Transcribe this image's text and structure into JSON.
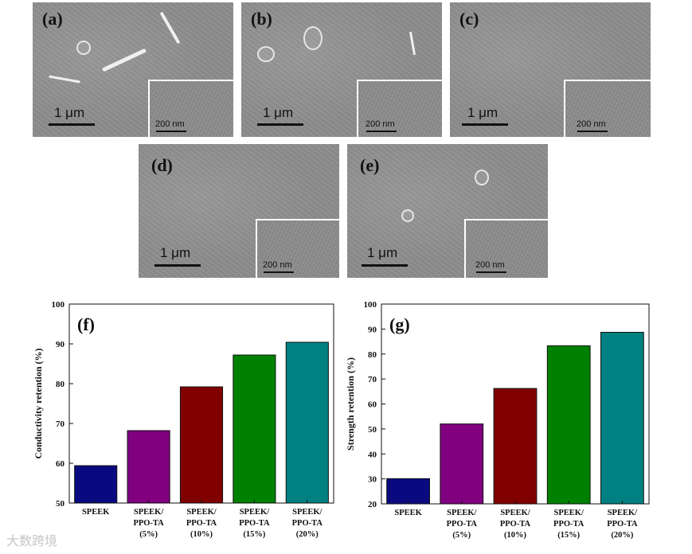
{
  "sem_panels": [
    {
      "label": "(a)",
      "scale": "1 μm",
      "inset_scale": "200 nm"
    },
    {
      "label": "(b)",
      "scale": "1 μm",
      "inset_scale": "200 nm"
    },
    {
      "label": "(c)",
      "scale": "1 μm",
      "inset_scale": "200 nm"
    },
    {
      "label": "(d)",
      "scale": "1 μm",
      "inset_scale": "200 nm"
    },
    {
      "label": "(e)",
      "scale": "1 μm",
      "inset_scale": "200 nm"
    }
  ],
  "watermark": "大数跨境",
  "colors": [
    "#0a0a80",
    "#800080",
    "#800000",
    "#008000",
    "#008080"
  ],
  "chart_data": [
    {
      "type": "bar",
      "panel_label": "(f)",
      "categories": [
        [
          "SPEEK"
        ],
        [
          "SPEEK/",
          "PPO-TA",
          "(5%)"
        ],
        [
          "SPEEK/",
          "PPO-TA",
          "(10%)"
        ],
        [
          "SPEEK/",
          "PPO-TA",
          "(15%)"
        ],
        [
          "SPEEK/",
          "PPO-TA",
          "(20%)"
        ]
      ],
      "values": [
        59.4,
        68.2,
        79.2,
        87.2,
        90.4
      ],
      "ylabel": "Conductivity retention (%)",
      "ylim": [
        50,
        100
      ],
      "yticks": [
        "50",
        "60",
        "70",
        "80",
        "90",
        "100"
      ]
    },
    {
      "type": "bar",
      "panel_label": "(g)",
      "categories": [
        [
          "SPEEK"
        ],
        [
          "SPEEK/",
          "PPO-TA",
          "(5%)"
        ],
        [
          "SPEEK/",
          "PPO-TA",
          "(10%)"
        ],
        [
          "SPEEK/",
          "PPO-TA",
          "(15%)"
        ],
        [
          "SPEEK/",
          "PPO-TA",
          "(20%)"
        ]
      ],
      "values": [
        30.1,
        52.0,
        66.2,
        83.3,
        88.7
      ],
      "ylabel": "Strength retention (%)",
      "ylim": [
        20,
        100
      ],
      "yticks": [
        "20",
        "30",
        "40",
        "50",
        "60",
        "70",
        "80",
        "90",
        "100"
      ]
    }
  ]
}
